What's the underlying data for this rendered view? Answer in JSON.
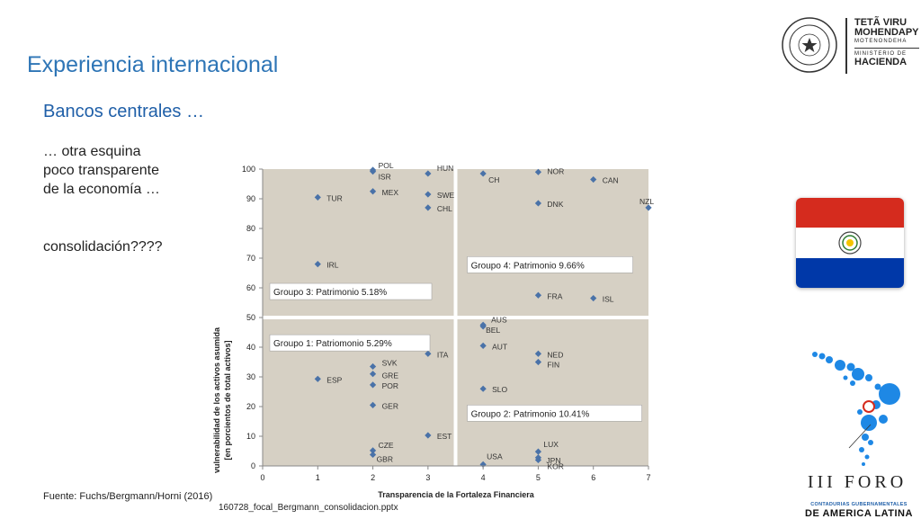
{
  "slide": {
    "title": "Experiencia internacional",
    "subtitle": "Bancos centrales …",
    "body_lines": [
      "… otra esquina",
      "poco transparente",
      "de la economía …"
    ],
    "question": "consolidación????",
    "source": "Fuente: Fuchs/Bergmann/Horni (2016)",
    "filename": "160728_focal_Bergmann_consolidacion.pptx"
  },
  "logo": {
    "line1": "TETÃ VIRU",
    "line2": "MOHENDAPY",
    "line3": "MOTENONDEHA",
    "line4": "MINISTERIO DE",
    "line5": "HACIENDA",
    "seal_text": "REPUBLICA DEL PARAGUAY"
  },
  "foro": {
    "title": "III FORO",
    "sub1": "CONTADURIAS GUBERNAMENTALES",
    "sub2": "DE AMERICA LATINA"
  },
  "colors": {
    "title": "#2e75b6",
    "subtitle": "#1f5fa8",
    "plot_bg": "#d6d0c4",
    "marker": "#4a72a8",
    "flag_red": "#d52b1e",
    "flag_blue": "#0038a8"
  },
  "chart_data": {
    "type": "scatter",
    "xlabel": "Transparencia de la Fortaleza Financiera",
    "ylabel": [
      "vulnerabilidad de los activos asumida",
      "[en porcientos de total activos]"
    ],
    "xlim": [
      0,
      7
    ],
    "ylim": [
      0,
      100
    ],
    "xticks": [
      "0",
      "1",
      "2",
      "3",
      "4",
      "5",
      "6",
      "7"
    ],
    "yticks": [
      "0",
      "10",
      "20",
      "30",
      "40",
      "50",
      "60",
      "70",
      "80",
      "90",
      "100"
    ],
    "grid": false,
    "quadrant_divider": {
      "x": 3.5,
      "y": 50
    },
    "group_labels": [
      "Groupo 3: Patrimonio 5.18%",
      "Groupo 4: Patrimonio 9.66%",
      "Groupo 1: Patriomonio 5.29%",
      "Groupo 2: Patrimonio 10.41%"
    ],
    "points": [
      {
        "label": "POL",
        "x": 2,
        "y": 99.7
      },
      {
        "label": "ISR",
        "x": 2,
        "y": 99.2
      },
      {
        "label": "MEX",
        "x": 2,
        "y": 92.5
      },
      {
        "label": "HUN",
        "x": 3,
        "y": 98.5
      },
      {
        "label": "SWE",
        "x": 3,
        "y": 91.5
      },
      {
        "label": "CHL",
        "x": 3,
        "y": 87
      },
      {
        "label": "TUR",
        "x": 1,
        "y": 90.5
      },
      {
        "label": "IRL",
        "x": 1,
        "y": 68
      },
      {
        "label": "CH",
        "x": 4,
        "y": 98.5
      },
      {
        "label": "NOR",
        "x": 5,
        "y": 99
      },
      {
        "label": "CAN",
        "x": 6,
        "y": 96.5
      },
      {
        "label": "DNK",
        "x": 5,
        "y": 88.5
      },
      {
        "label": "NZL",
        "x": 7,
        "y": 87
      },
      {
        "label": "FRA",
        "x": 5,
        "y": 57.5
      },
      {
        "label": "ISL",
        "x": 6,
        "y": 56.5
      },
      {
        "label": "AUS",
        "x": 4,
        "y": 47.5
      },
      {
        "label": "BEL",
        "x": 4,
        "y": 47
      },
      {
        "label": "AUT",
        "x": 4,
        "y": 40.5
      },
      {
        "label": "ITA",
        "x": 3,
        "y": 37.8
      },
      {
        "label": "NED",
        "x": 5,
        "y": 37.8
      },
      {
        "label": "FIN",
        "x": 5,
        "y": 35
      },
      {
        "label": "SLO",
        "x": 4,
        "y": 26
      },
      {
        "label": "SVK",
        "x": 2,
        "y": 33.5
      },
      {
        "label": "GRE",
        "x": 2,
        "y": 31
      },
      {
        "label": "POR",
        "x": 2,
        "y": 27.3
      },
      {
        "label": "GER",
        "x": 2,
        "y": 20.5
      },
      {
        "label": "ESP",
        "x": 1,
        "y": 29.3
      },
      {
        "label": "EST",
        "x": 3,
        "y": 10.3
      },
      {
        "label": "CZE",
        "x": 2,
        "y": 5.2
      },
      {
        "label": "GBR",
        "x": 2,
        "y": 3.8
      },
      {
        "label": "LUX",
        "x": 5,
        "y": 4.8
      },
      {
        "label": "JPN",
        "x": 5,
        "y": 2.8
      },
      {
        "label": "KOR",
        "x": 5,
        "y": 2
      },
      {
        "label": "USA",
        "x": 4,
        "y": 0.5
      }
    ]
  }
}
